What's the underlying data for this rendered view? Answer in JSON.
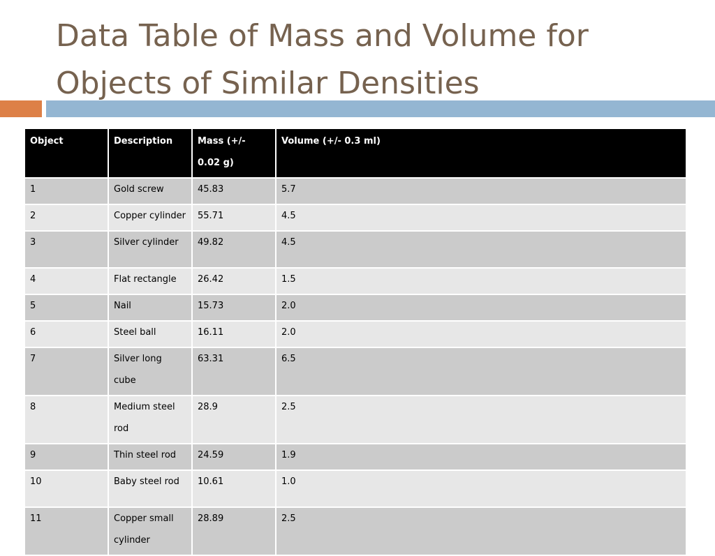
{
  "title": "Data Table of Mass and Volume for Objects of Similar Densities",
  "table": {
    "headers": [
      "Object",
      "Description",
      "Mass  (+/- 0.02 g)",
      "Volume (+/- 0.3 ml)"
    ],
    "rows": [
      [
        "1",
        "Gold screw",
        "45.83",
        "5.7"
      ],
      [
        "2",
        "Copper cylinder",
        "55.71",
        "4.5"
      ],
      [
        "3",
        "Silver cylinder",
        "49.82",
        "4.5"
      ],
      [
        "4",
        "Flat rectangle",
        "26.42",
        "1.5"
      ],
      [
        "5",
        "Nail",
        "15.73",
        "2.0"
      ],
      [
        "6",
        "Steel ball",
        "16.11",
        "2.0"
      ],
      [
        "7",
        "Silver long cube",
        "63.31",
        "6.5"
      ],
      [
        "8",
        "Medium steel rod",
        "28.9",
        "2.5"
      ],
      [
        "9",
        "Thin steel rod",
        "24.59",
        "1.9"
      ],
      [
        "10",
        "Baby steel rod",
        "10.61",
        "1.0"
      ],
      [
        "11",
        "Copper small cylinder",
        "28.89",
        "2.5"
      ]
    ]
  },
  "colors": {
    "title": "#76624f",
    "accent_orange": "#dd8047",
    "accent_blue": "#94b6d2",
    "header_bg": "#000000",
    "row_odd": "#cbcbcb",
    "row_even": "#e7e7e7"
  }
}
